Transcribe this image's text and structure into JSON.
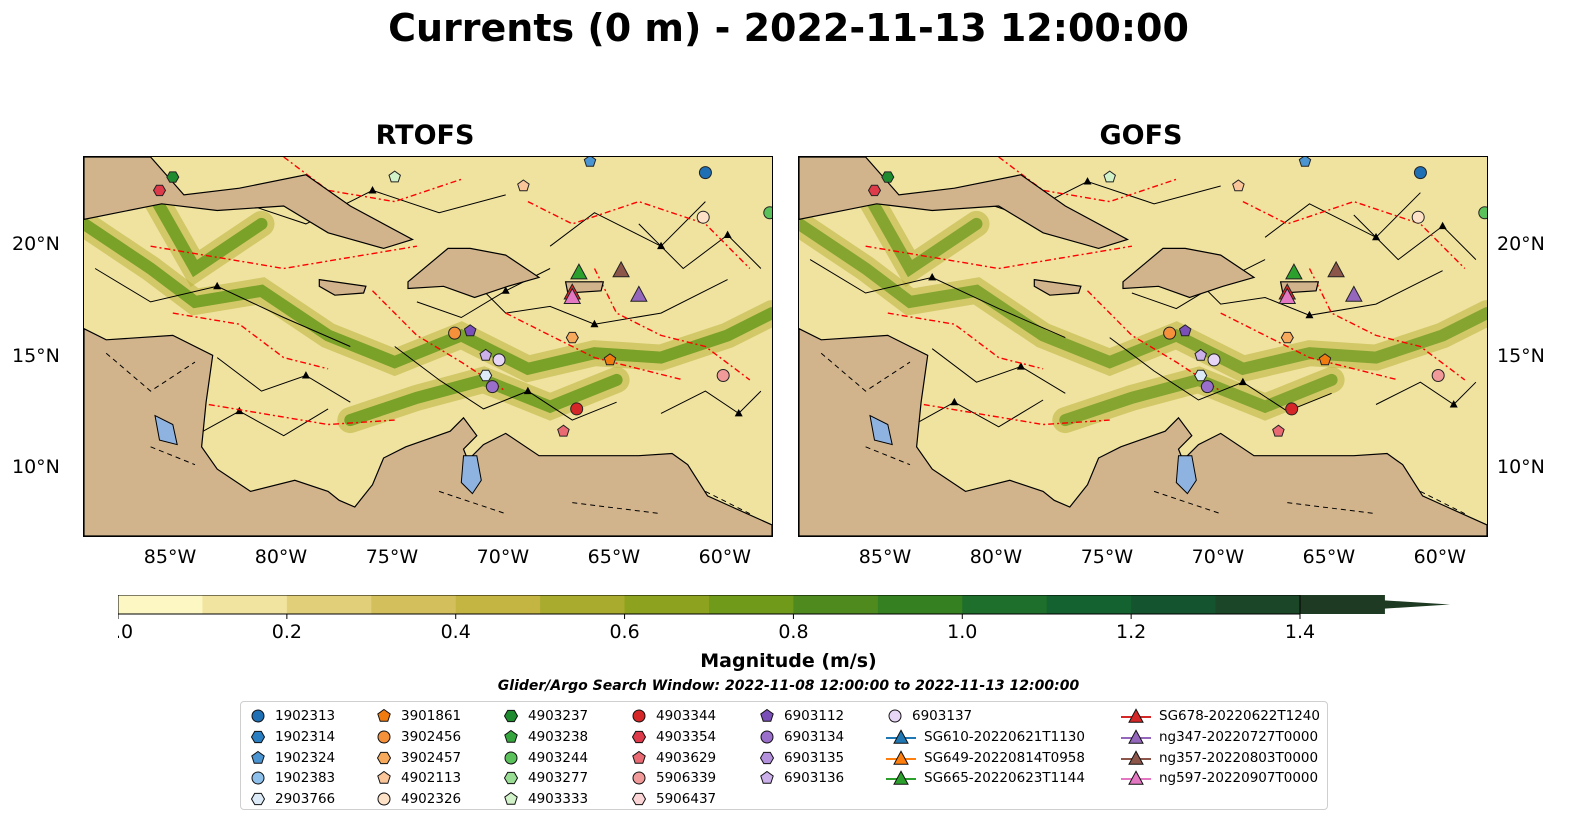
{
  "title": "Currents (0 m) - 2022-11-13 12:00:00",
  "panels": [
    {
      "title": "RTOFS"
    },
    {
      "title": "GOFS"
    }
  ],
  "chart_data": {
    "type": "heatmap",
    "title": "Currents (0 m) - 2022-11-13 12:00:00",
    "variable": "Magnitude (m/s)",
    "colorbar": {
      "label": "Magnitude (m/s)",
      "range": [
        0.0,
        1.5
      ],
      "step": 0.1,
      "extend": "max",
      "ticks": [
        "0.0",
        "0.2",
        "0.4",
        "0.6",
        "0.8",
        "1.0",
        "1.2",
        "1.4"
      ],
      "colors": [
        "#fdf7c3",
        "#f1e4a0",
        "#e2cf7a",
        "#d3c05c",
        "#c4b442",
        "#a9ab2e",
        "#8da21e",
        "#6f9a1a",
        "#4f8a1e",
        "#358020",
        "#1e6e2c",
        "#136230",
        "#145530",
        "#1b4628",
        "#1e3a22"
      ]
    },
    "lon_ticks": [
      "85°W",
      "80°W",
      "75°W",
      "70°W",
      "65°W",
      "60°W"
    ],
    "lat_ticks": [
      "20°N",
      "15°N",
      "10°N"
    ],
    "lon_range": [
      -89,
      -58
    ],
    "lat_range": [
      7,
      24
    ],
    "colors": {
      "land": "#d2b48c",
      "water": "#8fb3e0",
      "eez": "#ff0000",
      "border": "#000000"
    }
  },
  "search_window": "Glider/Argo Search Window: 2022-11-08 12:00:00 to 2022-11-13 12:00:00",
  "legend": [
    [
      {
        "label": "1902313",
        "marker": "circle",
        "color": "#1f6fb4"
      },
      {
        "label": "1902314",
        "marker": "hexagon",
        "color": "#2a7fc2"
      },
      {
        "label": "1902324",
        "marker": "pentagon",
        "color": "#4a94d2"
      },
      {
        "label": "1902383",
        "marker": "circle",
        "color": "#8ec0ec"
      },
      {
        "label": "2903766",
        "marker": "hexagon",
        "color": "#dceaf8"
      }
    ],
    [
      {
        "label": "3901861",
        "marker": "pentagon",
        "color": "#f07c10"
      },
      {
        "label": "3902456",
        "marker": "circle",
        "color": "#f5913a"
      },
      {
        "label": "3902457",
        "marker": "hexagon",
        "color": "#f7a95c"
      },
      {
        "label": "4902113",
        "marker": "pentagon",
        "color": "#fbc59a"
      },
      {
        "label": "4902326",
        "marker": "circle",
        "color": "#fde2c8"
      }
    ],
    [
      {
        "label": "4903237",
        "marker": "hexagon",
        "color": "#1e8c2e"
      },
      {
        "label": "4903238",
        "marker": "pentagon",
        "color": "#35a63e"
      },
      {
        "label": "4903244",
        "marker": "circle",
        "color": "#5bc25b"
      },
      {
        "label": "4903277",
        "marker": "hexagon",
        "color": "#99dd94"
      },
      {
        "label": "4903333",
        "marker": "pentagon",
        "color": "#d2f2c9"
      }
    ],
    [
      {
        "label": "4903344",
        "marker": "circle",
        "color": "#d62728"
      },
      {
        "label": "4903354",
        "marker": "hexagon",
        "color": "#de3b4a"
      },
      {
        "label": "4903629",
        "marker": "pentagon",
        "color": "#e96a72"
      },
      {
        "label": "5906339",
        "marker": "circle",
        "color": "#f19a9a"
      },
      {
        "label": "5906437",
        "marker": "hexagon",
        "color": "#fbd5d5"
      }
    ],
    [
      {
        "label": "6903112",
        "marker": "pentagon",
        "color": "#7a4fb8"
      },
      {
        "label": "6903134",
        "marker": "circle",
        "color": "#9a6fcb"
      },
      {
        "label": "6903135",
        "marker": "hexagon",
        "color": "#b491dd"
      },
      {
        "label": "6903136",
        "marker": "pentagon",
        "color": "#cbb0ea"
      },
      {
        "label": "",
        "marker": "none",
        "color": "#ffffff"
      }
    ],
    [
      {
        "label": "6903137",
        "marker": "circle",
        "color": "#e6d5f5"
      },
      {
        "label": "SG610-20220621T1130",
        "marker": "triangle-line",
        "color": "#1f77b4"
      },
      {
        "label": "SG649-20220814T0958",
        "marker": "triangle-line",
        "color": "#ff7f0e"
      },
      {
        "label": "SG665-20220623T1144",
        "marker": "triangle-line",
        "color": "#2ca02c"
      },
      {
        "label": "",
        "marker": "none",
        "color": "#ffffff"
      }
    ],
    [
      {
        "label": "SG678-20220622T1240",
        "marker": "triangle-line",
        "color": "#d62728"
      },
      {
        "label": "ng347-20220727T0000",
        "marker": "triangle-line",
        "color": "#9467bd"
      },
      {
        "label": "ng357-20220803T0000",
        "marker": "triangle-line",
        "color": "#8c564b"
      },
      {
        "label": "ng597-20220907T0000",
        "marker": "triangle-line",
        "color": "#e377c2"
      },
      {
        "label": "",
        "marker": "none",
        "color": "#ffffff"
      }
    ]
  ],
  "markers": [
    {
      "id": "1902313",
      "lon": -61.0,
      "lat": 23.3,
      "marker": "circle",
      "color": "#1f6fb4"
    },
    {
      "id": "1902324",
      "lon": -66.2,
      "lat": 23.8,
      "marker": "pentagon",
      "color": "#4a94d2"
    },
    {
      "id": "2903766",
      "lon": -70.9,
      "lat": 14.2,
      "marker": "hexagon",
      "color": "#dceaf8"
    },
    {
      "id": "3901861",
      "lon": -65.3,
      "lat": 14.9,
      "marker": "pentagon",
      "color": "#f07c10"
    },
    {
      "id": "3902456",
      "lon": -72.3,
      "lat": 16.1,
      "marker": "circle",
      "color": "#f5913a"
    },
    {
      "id": "3902457",
      "lon": -67.0,
      "lat": 15.9,
      "marker": "hexagon",
      "color": "#f7a95c"
    },
    {
      "id": "4902113",
      "lon": -69.2,
      "lat": 22.7,
      "marker": "pentagon",
      "color": "#fbc59a"
    },
    {
      "id": "4902326",
      "lon": -61.1,
      "lat": 21.3,
      "marker": "circle",
      "color": "#fde2c8"
    },
    {
      "id": "4903237",
      "lon": -85.0,
      "lat": 23.1,
      "marker": "hexagon",
      "color": "#1e8c2e"
    },
    {
      "id": "4903244",
      "lon": -58.1,
      "lat": 21.5,
      "marker": "circle",
      "color": "#5bc25b"
    },
    {
      "id": "4903333",
      "lon": -75.0,
      "lat": 23.1,
      "marker": "pentagon",
      "color": "#d2f2c9"
    },
    {
      "id": "4903344",
      "lon": -66.8,
      "lat": 12.7,
      "marker": "circle",
      "color": "#d62728"
    },
    {
      "id": "4903354",
      "lon": -85.6,
      "lat": 22.5,
      "marker": "hexagon",
      "color": "#de3b4a"
    },
    {
      "id": "4903629",
      "lon": -67.4,
      "lat": 11.7,
      "marker": "pentagon",
      "color": "#e96a72"
    },
    {
      "id": "5906339",
      "lon": -60.2,
      "lat": 14.2,
      "marker": "circle",
      "color": "#f19a9a"
    },
    {
      "id": "6903112",
      "lon": -71.6,
      "lat": 16.2,
      "marker": "pentagon",
      "color": "#7a4fb8"
    },
    {
      "id": "6903134",
      "lon": -70.6,
      "lat": 13.7,
      "marker": "circle",
      "color": "#9a6fcb"
    },
    {
      "id": "6903136",
      "lon": -70.9,
      "lat": 15.1,
      "marker": "pentagon",
      "color": "#cbb0ea"
    },
    {
      "id": "6903137",
      "lon": -70.3,
      "lat": 14.9,
      "marker": "circle",
      "color": "#e6d5f5"
    },
    {
      "id": "SG665-20220623T1144",
      "lon": -66.7,
      "lat": 18.8,
      "marker": "triangle",
      "color": "#2ca02c"
    },
    {
      "id": "SG678-20220622T1240",
      "lon": -67.0,
      "lat": 17.9,
      "marker": "triangle",
      "color": "#d62728"
    },
    {
      "id": "ng347-20220727T0000",
      "lon": -64.0,
      "lat": 17.8,
      "marker": "triangle",
      "color": "#9467bd"
    },
    {
      "id": "ng357-20220803T0000",
      "lon": -64.8,
      "lat": 18.9,
      "marker": "triangle",
      "color": "#8c564b"
    },
    {
      "id": "ng597-20220907T0000",
      "lon": -67.0,
      "lat": 17.7,
      "marker": "triangle",
      "color": "#e377c2"
    }
  ]
}
